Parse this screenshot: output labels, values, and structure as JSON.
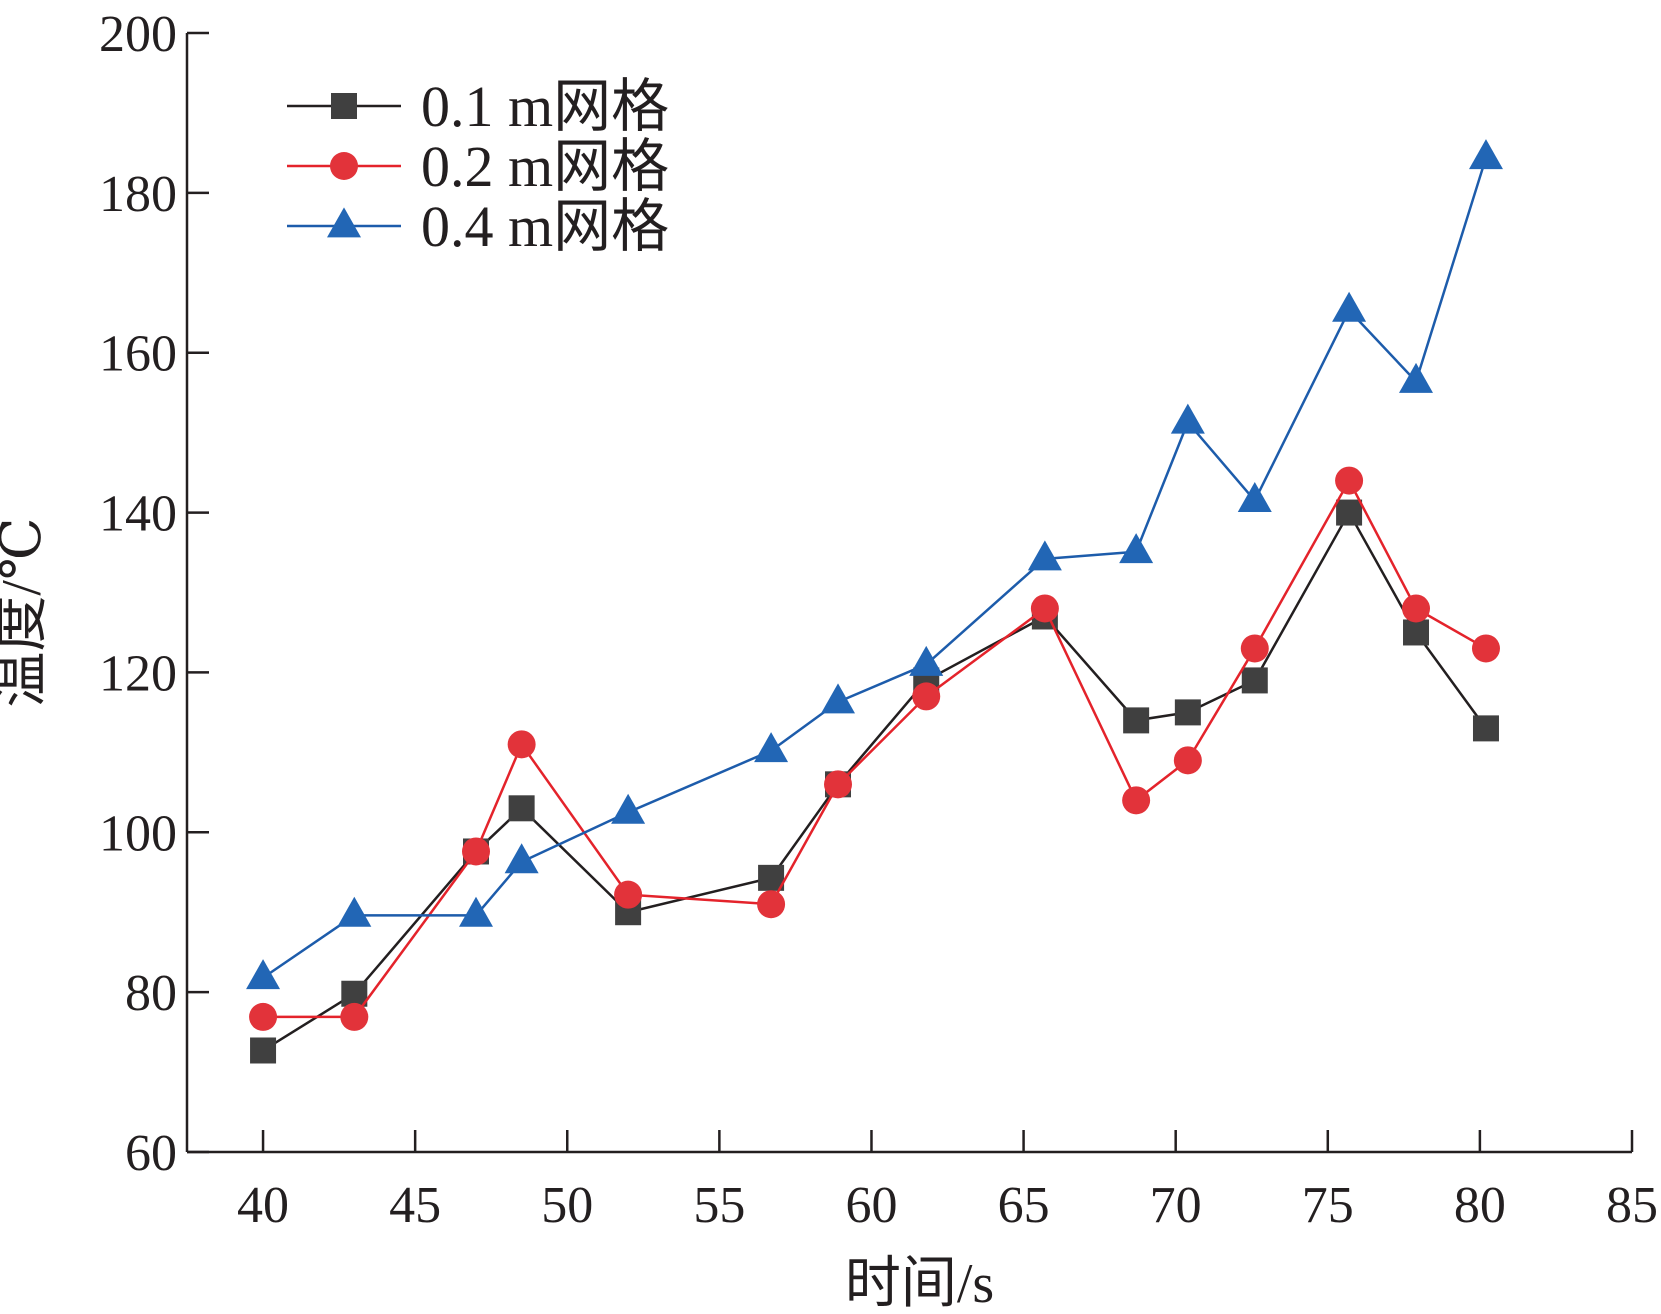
{
  "chart_data": {
    "type": "line",
    "xlabel": "时间/s",
    "ylabel": "温度/℃",
    "xlim": [
      37.5,
      85
    ],
    "ylim": [
      60,
      200
    ],
    "xticks": [
      40,
      45,
      50,
      55,
      60,
      65,
      70,
      75,
      80,
      85
    ],
    "yticks": [
      60,
      80,
      100,
      120,
      140,
      160,
      180,
      200
    ],
    "legend_position": "top-left",
    "series": [
      {
        "name": "0.1 m网格",
        "color": "#231f20",
        "marker_color": "#404040",
        "marker": "square",
        "points": [
          [
            40,
            72.7
          ],
          [
            43,
            79.8
          ],
          [
            47,
            97.6
          ],
          [
            48.5,
            103
          ],
          [
            52,
            90
          ],
          [
            56.7,
            94.3
          ],
          [
            58.9,
            106
          ],
          [
            61.8,
            119
          ],
          [
            65.7,
            127
          ],
          [
            68.7,
            114
          ],
          [
            70.4,
            115
          ],
          [
            72.6,
            119
          ],
          [
            75.7,
            140
          ],
          [
            77.9,
            125
          ],
          [
            80.2,
            113
          ]
        ]
      },
      {
        "name": "0.2 m网格",
        "color": "#e4232b",
        "marker_color": "#e2333a",
        "marker": "circle",
        "points": [
          [
            40,
            76.9
          ],
          [
            43,
            76.9
          ],
          [
            47,
            97.6
          ],
          [
            48.5,
            111
          ],
          [
            52,
            92.2
          ],
          [
            56.7,
            91
          ],
          [
            58.9,
            106
          ],
          [
            61.8,
            117
          ],
          [
            65.7,
            128
          ],
          [
            68.7,
            104
          ],
          [
            70.4,
            109
          ],
          [
            72.6,
            123
          ],
          [
            75.7,
            144
          ],
          [
            77.9,
            128
          ],
          [
            80.2,
            123
          ]
        ]
      },
      {
        "name": "0.4 m网格",
        "color": "#1d5cab",
        "marker_color": "#2266b5",
        "marker": "triangle",
        "points": [
          [
            40,
            81.8
          ],
          [
            43,
            89.6
          ],
          [
            47,
            89.6
          ],
          [
            48.5,
            96.3
          ],
          [
            52,
            102.5
          ],
          [
            56.7,
            110.2
          ],
          [
            58.9,
            116.3
          ],
          [
            61.8,
            121
          ],
          [
            65.7,
            134.2
          ],
          [
            68.7,
            135.1
          ],
          [
            70.4,
            151.3
          ],
          [
            72.6,
            141.5
          ],
          [
            75.7,
            165.3
          ],
          [
            77.9,
            156.4
          ],
          [
            80.2,
            184.4
          ]
        ]
      }
    ]
  }
}
